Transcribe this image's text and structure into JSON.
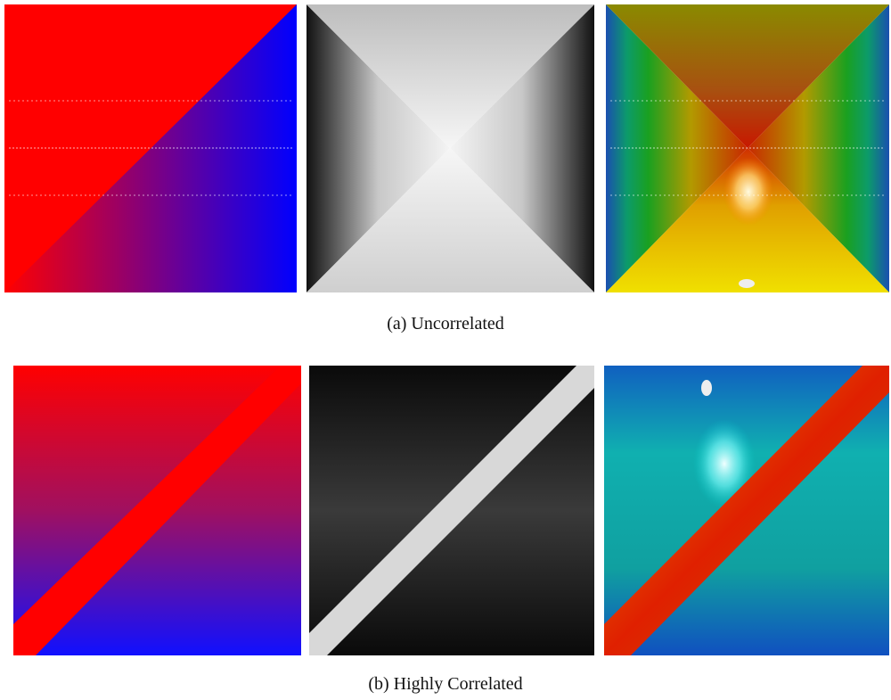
{
  "figure": {
    "subfigures": [
      {
        "caption": "(a) Uncorrelated"
      },
      {
        "caption": "(b) Highly Correlated"
      }
    ]
  }
}
